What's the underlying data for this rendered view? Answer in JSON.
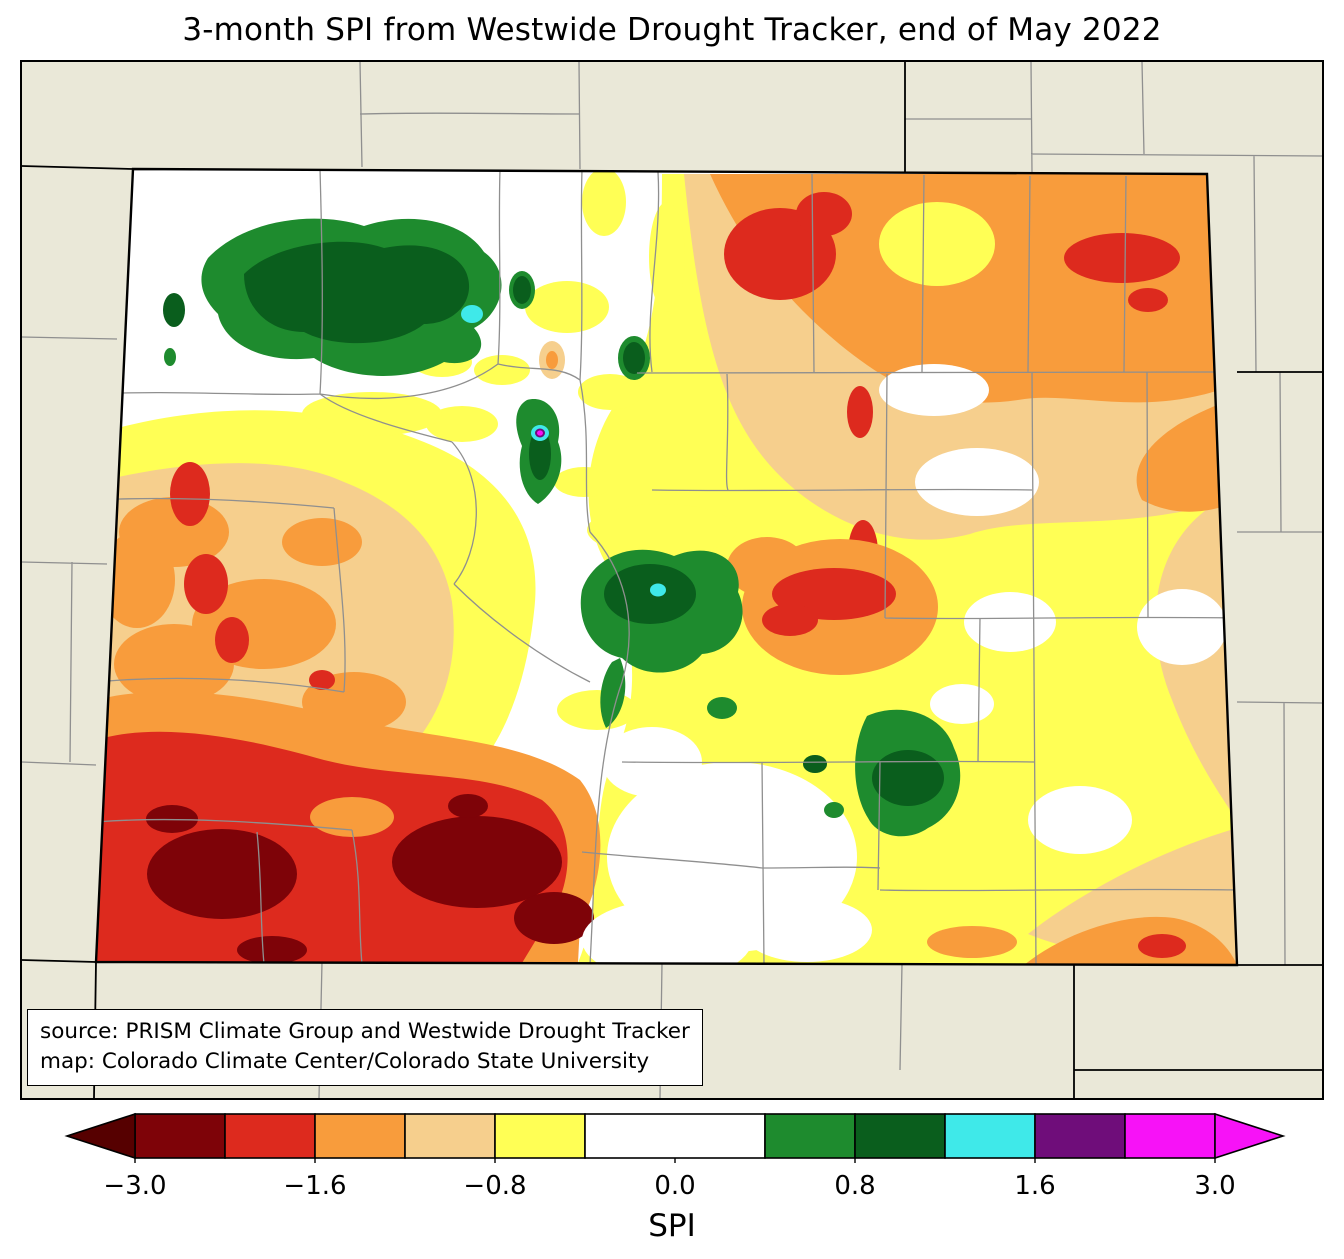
{
  "title": "3-month SPI from Westwide Drought Tracker, end of May 2022",
  "source_box": {
    "line1": "source: PRISM Climate Group and Westwide Drought Tracker",
    "line2": "map: Colorado Climate Center/Colorado State University"
  },
  "colorbar": {
    "label": "SPI",
    "left_arrow_color": "#560000",
    "right_arrow_color": "#f712f7",
    "segments": [
      {
        "from": -3.0,
        "to": -2.0,
        "color": "#7e0308",
        "span": 1
      },
      {
        "from": -2.0,
        "to": -1.6,
        "color": "#dd2a1e",
        "span": 1
      },
      {
        "from": -1.6,
        "to": -1.3,
        "color": "#f89c3c",
        "span": 1
      },
      {
        "from": -1.3,
        "to": -0.8,
        "color": "#f6cf8d",
        "span": 1
      },
      {
        "from": -0.8,
        "to": -0.5,
        "color": "#ffff55",
        "span": 1
      },
      {
        "from": -0.5,
        "to": 0.5,
        "color": "#ffffff",
        "span": 2
      },
      {
        "from": 0.5,
        "to": 0.8,
        "color": "#1e8b2e",
        "span": 1
      },
      {
        "from": 0.8,
        "to": 1.3,
        "color": "#0a5e1d",
        "span": 1
      },
      {
        "from": 1.3,
        "to": 1.6,
        "color": "#3fe9e9",
        "span": 1
      },
      {
        "from": 1.6,
        "to": 2.0,
        "color": "#6f0d7a",
        "span": 1
      },
      {
        "from": 2.0,
        "to": 3.0,
        "color": "#f712f7",
        "span": 1
      }
    ],
    "ticks": [
      {
        "label": "−3.0",
        "unit": 0
      },
      {
        "label": "−1.6",
        "unit": 2
      },
      {
        "label": "−0.8",
        "unit": 4
      },
      {
        "label": "0.0",
        "unit": 6
      },
      {
        "label": "0.8",
        "unit": 8
      },
      {
        "label": "1.6",
        "unit": 10
      },
      {
        "label": "3.0",
        "unit": 12
      }
    ]
  },
  "map": {
    "palette": {
      "beige": "#eae8d8",
      "white": "#ffffff",
      "yellow": "#ffff55",
      "tan": "#f6cf8d",
      "orange": "#f89c3c",
      "red": "#dd2a1e",
      "darkred": "#7e0308",
      "green": "#1e8b2e",
      "darkgreen": "#0a5e1d",
      "cyan": "#3fe9e9",
      "purple": "#6f0d7a",
      "magenta": "#f712f7",
      "county_line": "#8f8f8f",
      "state_line": "#000000"
    }
  }
}
